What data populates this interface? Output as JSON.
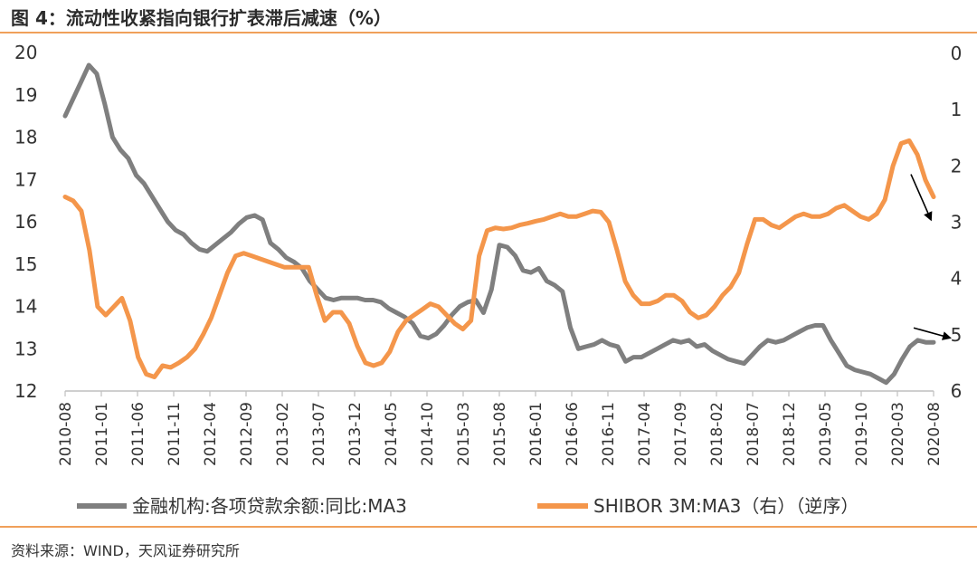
{
  "header": {
    "title": "图 4：流动性收紧指向银行扩表滞后减速（%）"
  },
  "footer": {
    "source": "资料来源：WIND，天风证券研究所"
  },
  "chart_data": {
    "type": "line",
    "title": "图 4：流动性收紧指向银行扩表滞后减速（%）",
    "ylim": [
      12,
      20
    ],
    "y2lim": [
      0,
      6
    ],
    "y2_inverted": true,
    "y_ticks": [
      "20",
      "19",
      "18",
      "17",
      "16",
      "15",
      "14",
      "13",
      "12"
    ],
    "y2_ticks": [
      "0",
      "1",
      "2",
      "3",
      "4",
      "5",
      "6"
    ],
    "x_tick_labels": [
      "2010-08",
      "2011-01",
      "2011-06",
      "2011-11",
      "2012-04",
      "2012-09",
      "2013-02",
      "2013-07",
      "2013-12",
      "2014-05",
      "2014-10",
      "2015-03",
      "2015-08",
      "2016-01",
      "2016-06",
      "2016-11",
      "2017-04",
      "2017-09",
      "2018-02",
      "2018-07",
      "2018-12",
      "2019-05",
      "2019-10",
      "2020-03",
      "2020-08"
    ],
    "series": [
      {
        "name": "金融机构:各项贷款余额:同比:MA3",
        "axis": "left",
        "color": "#7f7f7f",
        "values": [
          18.5,
          18.9,
          19.3,
          19.7,
          19.5,
          18.8,
          18.0,
          17.7,
          17.5,
          17.1,
          16.9,
          16.6,
          16.3,
          16.0,
          15.8,
          15.7,
          15.5,
          15.35,
          15.3,
          15.45,
          15.6,
          15.75,
          15.95,
          16.1,
          16.15,
          16.05,
          15.5,
          15.35,
          15.15,
          15.05,
          14.9,
          14.6,
          14.4,
          14.2,
          14.15,
          14.2,
          14.2,
          14.2,
          14.15,
          14.15,
          14.1,
          13.95,
          13.85,
          13.75,
          13.6,
          13.3,
          13.25,
          13.35,
          13.55,
          13.8,
          14.0,
          14.1,
          14.15,
          13.85,
          14.4,
          15.45,
          15.4,
          15.2,
          14.85,
          14.8,
          14.9,
          14.6,
          14.5,
          14.35,
          13.5,
          13.0,
          13.05,
          13.1,
          13.2,
          13.1,
          13.05,
          12.7,
          12.8,
          12.8,
          12.9,
          13.0,
          13.1,
          13.2,
          13.15,
          13.2,
          13.05,
          13.1,
          12.95,
          12.85,
          12.75,
          12.7,
          12.65,
          12.85,
          13.05,
          13.2,
          13.15,
          13.2,
          13.3,
          13.4,
          13.5,
          13.55,
          13.55,
          13.2,
          12.9,
          12.6,
          12.5,
          12.45,
          12.4,
          12.3,
          12.2,
          12.4,
          12.75,
          13.05,
          13.2,
          13.15,
          13.15
        ]
      },
      {
        "name": "SHIBOR 3M:MA3（右）（逆序）",
        "axis": "right",
        "color": "#f4964b",
        "values": [
          2.55,
          2.62,
          2.8,
          3.5,
          4.5,
          4.65,
          4.5,
          4.35,
          4.75,
          5.4,
          5.7,
          5.75,
          5.55,
          5.58,
          5.5,
          5.4,
          5.25,
          5.0,
          4.7,
          4.3,
          3.9,
          3.6,
          3.55,
          3.6,
          3.65,
          3.7,
          3.75,
          3.8,
          3.8,
          3.8,
          3.8,
          4.3,
          4.75,
          4.6,
          4.6,
          4.8,
          5.2,
          5.5,
          5.55,
          5.5,
          5.3,
          4.95,
          4.75,
          4.65,
          4.55,
          4.45,
          4.5,
          4.65,
          4.8,
          4.9,
          4.75,
          3.6,
          3.15,
          3.1,
          3.12,
          3.1,
          3.05,
          3.02,
          2.98,
          2.95,
          2.9,
          2.85,
          2.9,
          2.9,
          2.85,
          2.8,
          2.82,
          3.0,
          3.5,
          4.05,
          4.3,
          4.45,
          4.45,
          4.4,
          4.3,
          4.3,
          4.4,
          4.6,
          4.7,
          4.65,
          4.5,
          4.3,
          4.15,
          3.9,
          3.4,
          2.95,
          2.95,
          3.05,
          3.1,
          3.0,
          2.9,
          2.85,
          2.9,
          2.9,
          2.85,
          2.75,
          2.7,
          2.8,
          2.9,
          2.95,
          2.85,
          2.6,
          2.0,
          1.6,
          1.55,
          1.8,
          2.25,
          2.55
        ]
      }
    ],
    "annotations": [
      {
        "type": "arrow",
        "target": "SHIBOR 3M:MA3（右）（逆序）",
        "direction": "down"
      },
      {
        "type": "arrow",
        "target": "金融机构:各项贷款余额:同比:MA3",
        "direction": "down"
      }
    ]
  }
}
